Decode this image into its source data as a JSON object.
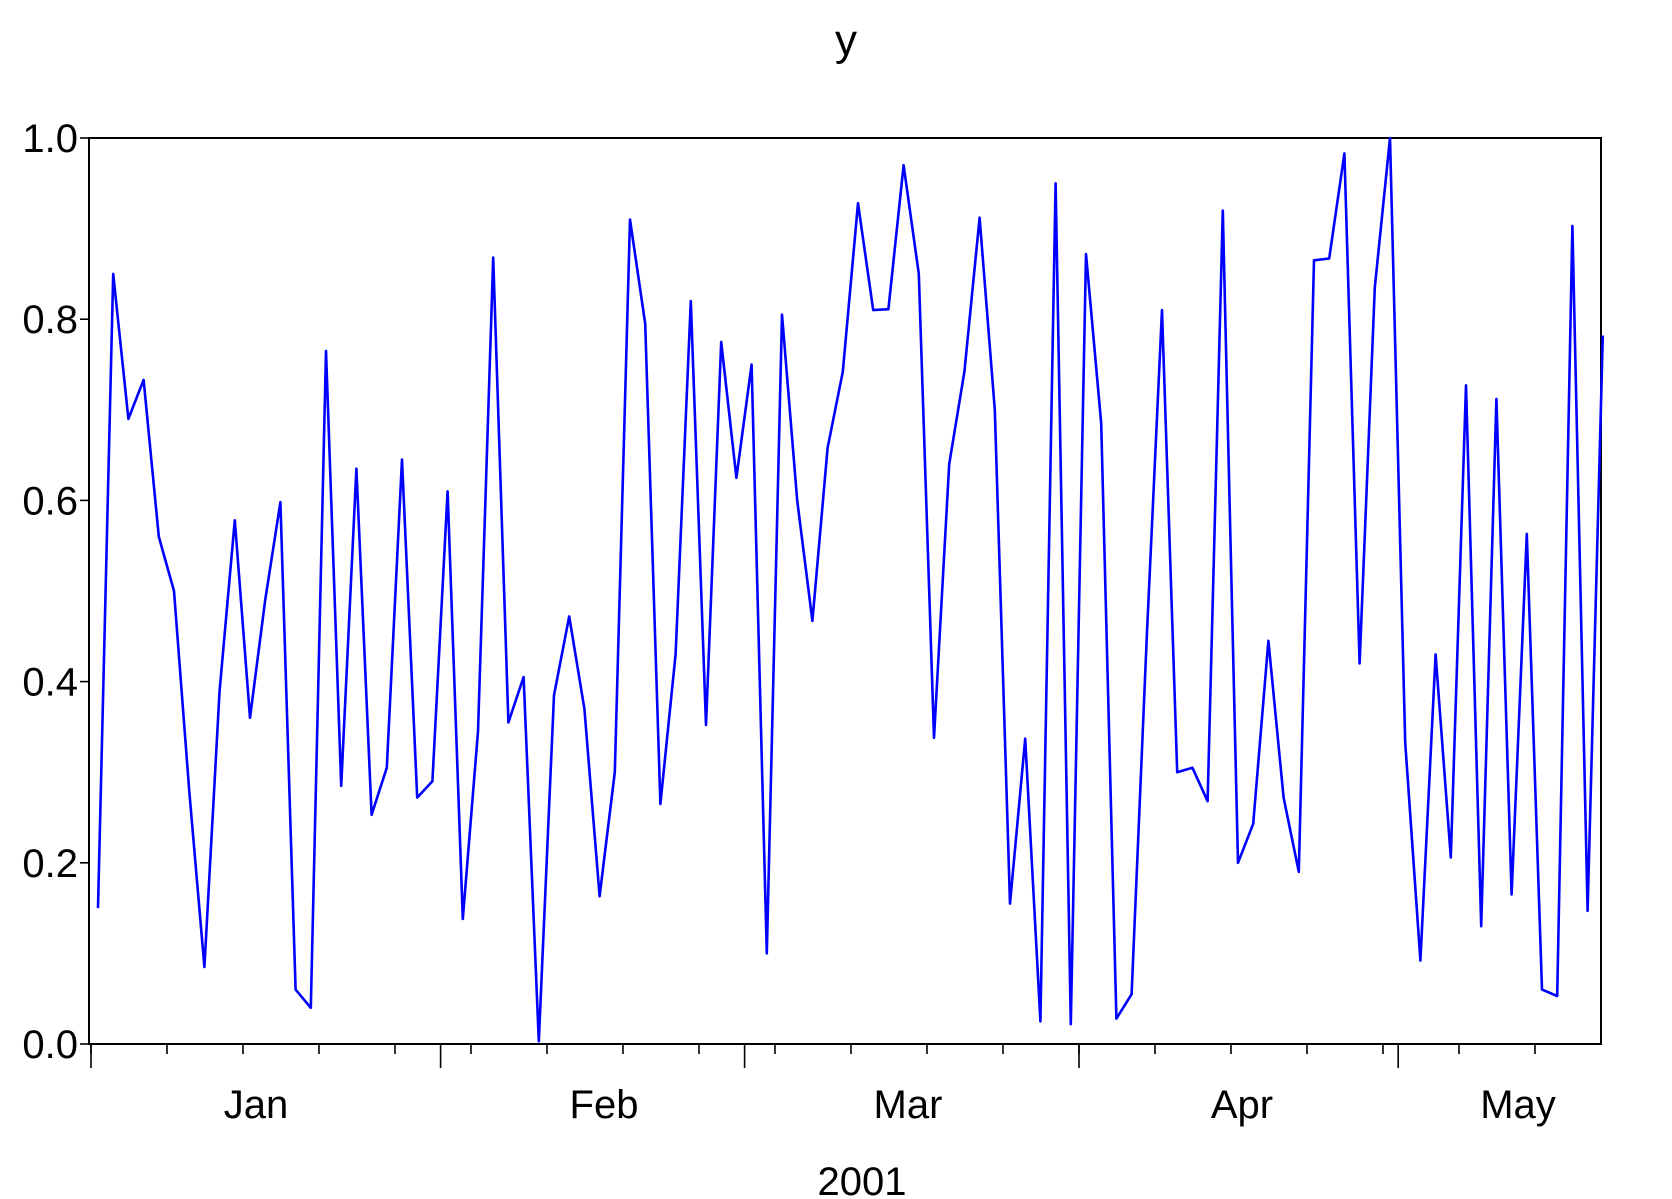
{
  "chart_data": {
    "type": "line",
    "title": "y",
    "xlabel": "2001",
    "ylabel": "",
    "ylim": [
      0,
      1
    ],
    "yticks": [
      "0.0",
      "0.2",
      "0.4",
      "0.6",
      "0.8",
      "1.0"
    ],
    "month_labels": [
      "Jan",
      "Feb",
      "Mar",
      "Apr",
      "May"
    ],
    "grid": false,
    "line_color": "#0000ff",
    "series": [
      {
        "values": [
          0.15,
          0.85,
          0.69,
          0.733,
          0.56,
          0.5,
          0.28,
          0.085,
          0.39,
          0.578,
          0.36,
          0.49,
          0.598,
          0.06,
          0.04,
          0.765,
          0.285,
          0.635,
          0.253,
          0.305,
          0.645,
          0.272,
          0.29,
          0.61,
          0.138,
          0.345,
          0.868,
          0.355,
          0.405,
          0.003,
          0.385,
          0.472,
          0.37,
          0.163,
          0.3,
          0.91,
          0.795,
          0.265,
          0.43,
          0.82,
          0.352,
          0.775,
          0.625,
          0.75,
          0.1,
          0.805,
          0.6,
          0.467,
          0.658,
          0.742,
          0.928,
          0.81,
          0.811,
          0.97,
          0.85,
          0.338,
          0.64,
          0.742,
          0.912,
          0.7,
          0.155,
          0.337,
          0.025,
          0.95,
          0.022,
          0.872,
          0.685,
          0.028,
          0.055,
          0.45,
          0.81,
          0.3,
          0.305,
          0.268,
          0.92,
          0.2,
          0.243,
          0.445,
          0.272,
          0.19,
          0.865,
          0.867,
          0.983,
          0.42,
          0.835,
          1.0,
          0.333,
          0.092,
          0.43,
          0.206,
          0.727,
          0.13,
          0.712,
          0.165,
          0.563,
          0.06,
          0.053,
          0.903,
          0.147,
          0.782
        ]
      }
    ]
  }
}
